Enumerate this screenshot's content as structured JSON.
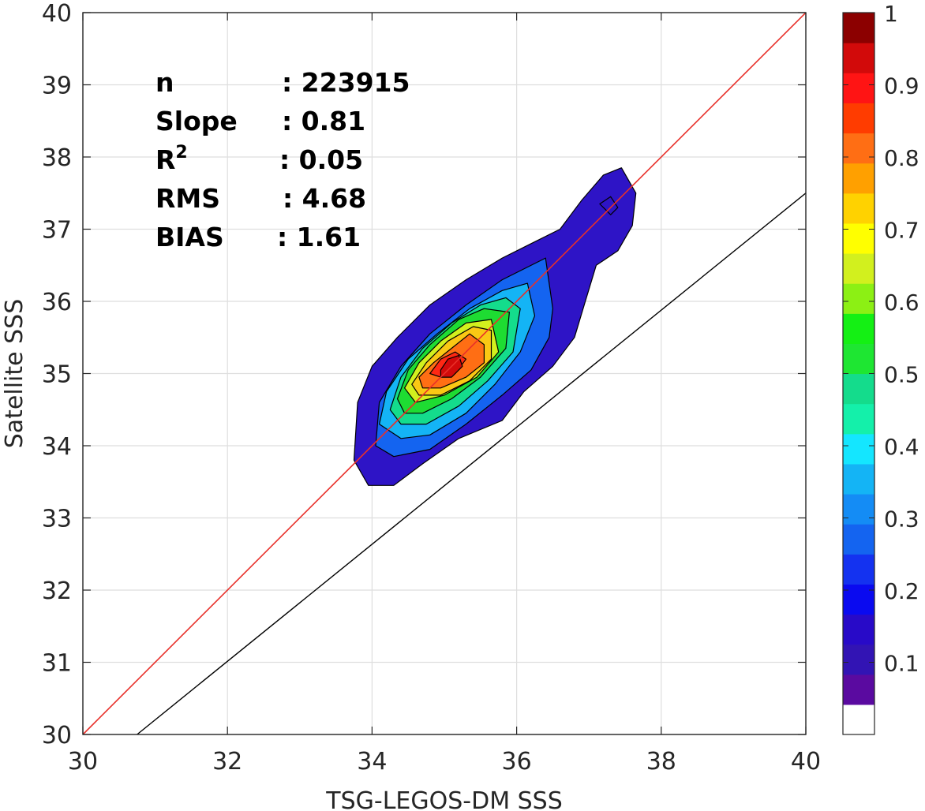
{
  "chart_data": {
    "type": "contour",
    "xlabel": "TSG-LEGOS-DM SSS",
    "ylabel": "Satellite SSS",
    "xlim": [
      30,
      40
    ],
    "ylim": [
      30,
      40
    ],
    "x_ticks": [
      "30",
      "32",
      "34",
      "36",
      "38",
      "40"
    ],
    "y_ticks": [
      "30",
      "31",
      "32",
      "33",
      "34",
      "35",
      "36",
      "37",
      "38",
      "39",
      "40"
    ],
    "grid": true,
    "box": true,
    "identity_line": {
      "x": [
        30,
        40
      ],
      "y": [
        30,
        40
      ],
      "color": "#e8302a"
    },
    "fit_line": {
      "x": [
        30.75,
        40
      ],
      "y": [
        30,
        37.5
      ],
      "color": "#000000"
    },
    "stats": [
      {
        "label": "n",
        "value": ": 223915"
      },
      {
        "label": "Slope",
        "value": ": 0.81"
      },
      {
        "label": "R",
        "sup": "2",
        "value": ": 0.05"
      },
      {
        "label": "RMS",
        "value": ": 4.68"
      },
      {
        "label": "BIAS",
        "value": ": 1.61"
      }
    ],
    "density_levels": [
      {
        "level": 0.1,
        "color": "#2e14c6",
        "polygons": [
          [
            [
              33.75,
              33.8
            ],
            [
              33.8,
              34.6
            ],
            [
              34.0,
              35.1
            ],
            [
              34.35,
              35.5
            ],
            [
              34.8,
              35.95
            ],
            [
              35.3,
              36.3
            ],
            [
              35.8,
              36.6
            ],
            [
              36.2,
              36.8
            ],
            [
              36.6,
              37.0
            ],
            [
              36.9,
              37.4
            ],
            [
              37.2,
              37.75
            ],
            [
              37.45,
              37.85
            ],
            [
              37.65,
              37.5
            ],
            [
              37.6,
              37.05
            ],
            [
              37.4,
              36.7
            ],
            [
              37.1,
              36.5
            ],
            [
              36.95,
              36.0
            ],
            [
              36.8,
              35.5
            ],
            [
              36.5,
              35.1
            ],
            [
              36.1,
              34.75
            ],
            [
              35.8,
              34.35
            ],
            [
              35.2,
              34.1
            ],
            [
              34.7,
              33.75
            ],
            [
              34.3,
              33.45
            ],
            [
              33.95,
              33.45
            ]
          ],
          [
            [
              37.15,
              37.35
            ],
            [
              37.3,
              37.45
            ],
            [
              37.4,
              37.3
            ],
            [
              37.3,
              37.2
            ]
          ]
        ]
      },
      {
        "level": 0.2,
        "color": "#1464f0",
        "polygons": [
          [
            [
              34.05,
              34.0
            ],
            [
              34.1,
              34.6
            ],
            [
              34.4,
              35.1
            ],
            [
              34.8,
              35.55
            ],
            [
              35.3,
              35.95
            ],
            [
              35.8,
              36.3
            ],
            [
              36.4,
              36.6
            ],
            [
              36.5,
              35.9
            ],
            [
              36.45,
              35.5
            ],
            [
              36.2,
              35.05
            ],
            [
              35.8,
              34.7
            ],
            [
              35.3,
              34.3
            ],
            [
              34.8,
              33.95
            ],
            [
              34.3,
              33.85
            ]
          ]
        ]
      },
      {
        "level": 0.3,
        "color": "#14b4f5",
        "polygons": [
          [
            [
              34.1,
              34.3
            ],
            [
              34.2,
              34.75
            ],
            [
              34.5,
              35.2
            ],
            [
              34.9,
              35.55
            ],
            [
              35.35,
              35.9
            ],
            [
              35.8,
              36.15
            ],
            [
              36.15,
              36.25
            ],
            [
              36.25,
              35.8
            ],
            [
              36.05,
              35.3
            ],
            [
              35.7,
              34.85
            ],
            [
              35.3,
              34.45
            ],
            [
              34.8,
              34.15
            ],
            [
              34.4,
              34.1
            ]
          ]
        ]
      },
      {
        "level": 0.4,
        "color": "#14dc8c",
        "polygons": [
          [
            [
              34.25,
              34.5
            ],
            [
              34.4,
              34.95
            ],
            [
              34.7,
              35.35
            ],
            [
              35.1,
              35.7
            ],
            [
              35.5,
              35.95
            ],
            [
              35.85,
              36.05
            ],
            [
              36.05,
              35.9
            ],
            [
              35.95,
              35.3
            ],
            [
              35.6,
              34.9
            ],
            [
              35.2,
              34.55
            ],
            [
              34.75,
              34.3
            ],
            [
              34.4,
              34.3
            ]
          ]
        ]
      },
      {
        "level": 0.5,
        "color": "#1edc32",
        "polygons": [
          [
            [
              34.35,
              34.65
            ],
            [
              34.5,
              35.05
            ],
            [
              34.8,
              35.4
            ],
            [
              35.2,
              35.75
            ],
            [
              35.55,
              35.9
            ],
            [
              35.9,
              35.85
            ],
            [
              35.85,
              35.35
            ],
            [
              35.5,
              34.95
            ],
            [
              35.1,
              34.65
            ],
            [
              34.7,
              34.45
            ],
            [
              34.45,
              34.45
            ]
          ]
        ]
      },
      {
        "level": 0.6,
        "color": "#d2f01e",
        "polygons": [
          [
            [
              34.45,
              34.8
            ],
            [
              34.65,
              35.15
            ],
            [
              34.95,
              35.45
            ],
            [
              35.3,
              35.7
            ],
            [
              35.65,
              35.75
            ],
            [
              35.75,
              35.3
            ],
            [
              35.45,
              34.95
            ],
            [
              35.0,
              34.7
            ],
            [
              34.6,
              34.6
            ]
          ]
        ]
      },
      {
        "level": 0.7,
        "color": "#fac814",
        "polygons": [
          [
            [
              34.55,
              34.85
            ],
            [
              34.75,
              35.15
            ],
            [
              35.05,
              35.45
            ],
            [
              35.4,
              35.65
            ],
            [
              35.65,
              35.6
            ],
            [
              35.65,
              35.2
            ],
            [
              35.35,
              34.9
            ],
            [
              34.95,
              34.7
            ],
            [
              34.65,
              34.7
            ]
          ]
        ]
      },
      {
        "level": 0.8,
        "color": "#ff6e14",
        "polygons": [
          [
            [
              34.65,
              34.95
            ],
            [
              34.85,
              35.15
            ],
            [
              35.1,
              35.35
            ],
            [
              35.35,
              35.55
            ],
            [
              35.55,
              35.4
            ],
            [
              35.55,
              35.15
            ],
            [
              35.3,
              34.95
            ],
            [
              34.95,
              34.8
            ],
            [
              34.7,
              34.8
            ]
          ]
        ]
      },
      {
        "level": 0.9,
        "color": "#ff2814",
        "polygons": [
          [
            [
              34.8,
              35.0
            ],
            [
              34.95,
              35.2
            ],
            [
              35.15,
              35.3
            ],
            [
              35.3,
              35.2
            ],
            [
              35.15,
              35.0
            ],
            [
              34.95,
              34.95
            ]
          ]
        ]
      },
      {
        "level": 0.95,
        "color": "#d20a0a",
        "polygons": [
          [
            [
              34.95,
              35.05
            ],
            [
              35.05,
              35.2
            ],
            [
              35.2,
              35.25
            ],
            [
              35.25,
              35.1
            ],
            [
              35.1,
              34.95
            ],
            [
              34.95,
              34.95
            ]
          ]
        ]
      }
    ],
    "colorbar": {
      "range": [
        0,
        1
      ],
      "tick_labels": [
        "0.1",
        "0.2",
        "0.3",
        "0.4",
        "0.5",
        "0.6",
        "0.7",
        "0.8",
        "0.9",
        "1"
      ],
      "tick_values": [
        0.1,
        0.2,
        0.3,
        0.4,
        0.5,
        0.6,
        0.7,
        0.8,
        0.9,
        1.0
      ],
      "colors": [
        "#ffffff",
        "#5a0aa0",
        "#3214b4",
        "#280ac8",
        "#0a0af0",
        "#1432f0",
        "#1464f0",
        "#148cf5",
        "#14b4f5",
        "#14e6ff",
        "#14f0aa",
        "#14dc8c",
        "#1ee632",
        "#14f014",
        "#8cf014",
        "#d2f01e",
        "#ffff00",
        "#ffd200",
        "#ffa000",
        "#ff6e14",
        "#ff3c00",
        "#ff1414",
        "#d20a0a",
        "#8c0000"
      ]
    }
  }
}
